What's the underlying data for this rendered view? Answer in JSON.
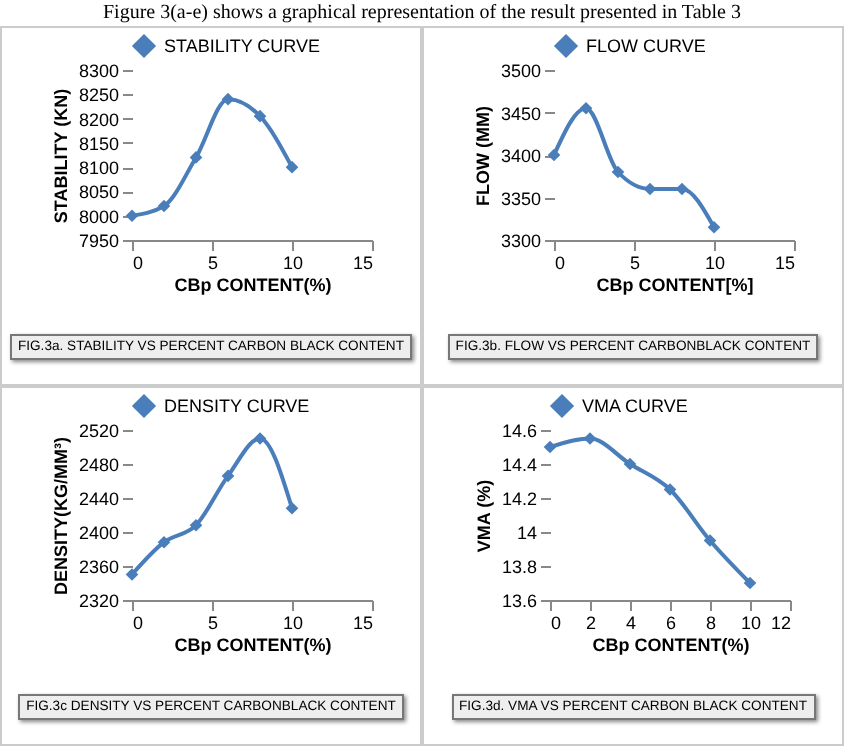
{
  "chart_data": [
    {
      "type": "line",
      "title": "Figure 3(a-e) shows a graphical representation of the result presented in Table 3",
      "xlabel": "CBp CONTENT(%)",
      "ylabel": "STABILITY (KN)",
      "x": [
        0,
        2,
        4,
        6,
        8,
        10
      ],
      "series": [
        {
          "name": "STABILITY CURVE",
          "color": "#4a7ebb",
          "values": [
            8000,
            8020,
            8120,
            8240,
            8205,
            8100
          ]
        }
      ],
      "xlim": [
        0,
        15
      ],
      "xticks": [
        0,
        5,
        10,
        15
      ],
      "ylim": [
        7950,
        8300
      ],
      "yticks": [
        7950,
        8000,
        8050,
        8100,
        8150,
        8200,
        8250,
        8300
      ],
      "legend": "top",
      "marker": "diamond",
      "grid": false,
      "annotations": [
        "FIG.3a. STABILITY VS PERCENT CARBON BLACK CONTENT"
      ]
    },
    {
      "type": "line",
      "xlabel": "CBp CONTENT[%]",
      "ylabel": "FLOW (MM)",
      "x": [
        0,
        2,
        4,
        6,
        8,
        10
      ],
      "series": [
        {
          "name": "FLOW CURVE",
          "color": "#4a7ebb",
          "values": [
            3400,
            3455,
            3380,
            3360,
            3360,
            3315
          ]
        }
      ],
      "xlim": [
        0,
        15
      ],
      "xticks": [
        0,
        5,
        10,
        15
      ],
      "ylim": [
        3300,
        3500
      ],
      "yticks": [
        3300,
        3350,
        3400,
        3450,
        3500
      ],
      "legend": "top",
      "marker": "diamond",
      "grid": false,
      "annotations": [
        "FIG.3b. FLOW VS PERCENT CARBONBLACK CONTENT"
      ]
    },
    {
      "type": "line",
      "xlabel": "CBp CONTENT(%)",
      "ylabel": "DENSITY(KG/MM³)",
      "x": [
        0,
        2,
        4,
        6,
        8,
        10
      ],
      "series": [
        {
          "name": "DENSITY CURVE",
          "color": "#4a7ebb",
          "values": [
            2350,
            2388,
            2408,
            2466,
            2510,
            2428
          ]
        }
      ],
      "xlim": [
        0,
        15
      ],
      "xticks": [
        0,
        5,
        10,
        15
      ],
      "ylim": [
        2320,
        2520
      ],
      "yticks": [
        2320,
        2360,
        2400,
        2440,
        2480,
        2520
      ],
      "legend": "top",
      "marker": "diamond",
      "grid": false,
      "annotations": [
        "FIG.3c DENSITY VS PERCENT CARBONBLACK CONTENT"
      ]
    },
    {
      "type": "line",
      "xlabel": "CBp CONTENT(%)",
      "ylabel": "VMA (%)",
      "x": [
        0,
        2,
        4,
        6,
        8,
        10
      ],
      "series": [
        {
          "name": "VMA CURVE",
          "color": "#4a7ebb",
          "values": [
            14.5,
            14.55,
            14.4,
            14.25,
            13.95,
            13.7
          ]
        }
      ],
      "xlim": [
        0,
        12
      ],
      "xticks": [
        0,
        2,
        4,
        6,
        8,
        10,
        12
      ],
      "ylim": [
        13.6,
        14.6
      ],
      "yticks": [
        13.6,
        13.8,
        14,
        14.2,
        14.4,
        14.6
      ],
      "legend": "top",
      "marker": "diamond",
      "grid": false,
      "annotations": [
        "FIG.3d. VMA VS PERCENT CARBON BLACK CONTENT"
      ]
    }
  ]
}
